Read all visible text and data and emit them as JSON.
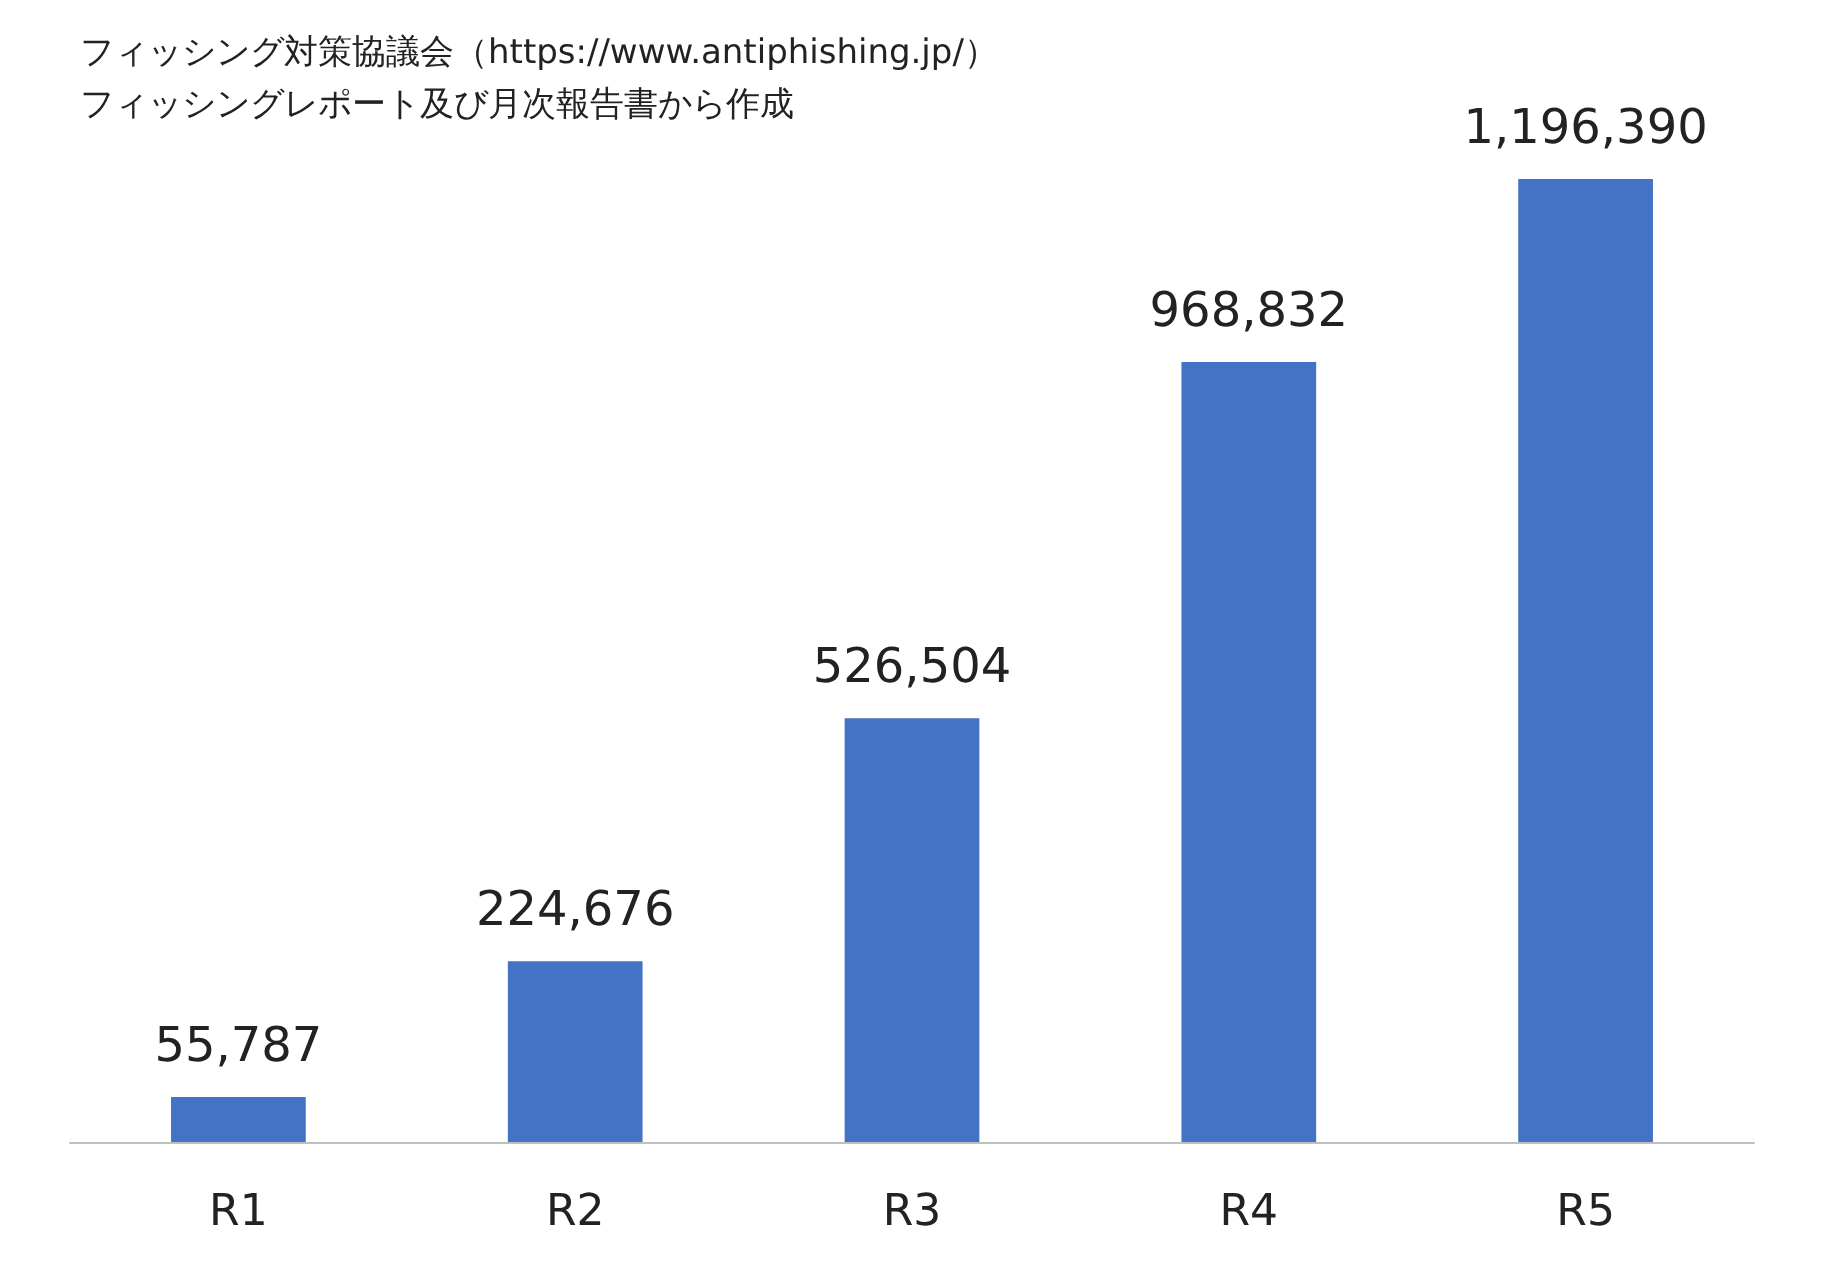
{
  "chart_data": {
    "type": "bar",
    "categories": [
      "R1",
      "R2",
      "R3",
      "R4",
      "R5"
    ],
    "values": [
      55787,
      224676,
      526504,
      968832,
      1196390
    ],
    "color": "#4472c4",
    "value_labels": [
      "55,787",
      "224,676",
      "526,504",
      "968,832",
      "1,196,390"
    ],
    "grid": false,
    "annotations": [
      "フィッシング対策協議会（https://www.antiphishing.jp/）",
      "フィッシングレポート及び月次報告書から作成"
    ]
  }
}
